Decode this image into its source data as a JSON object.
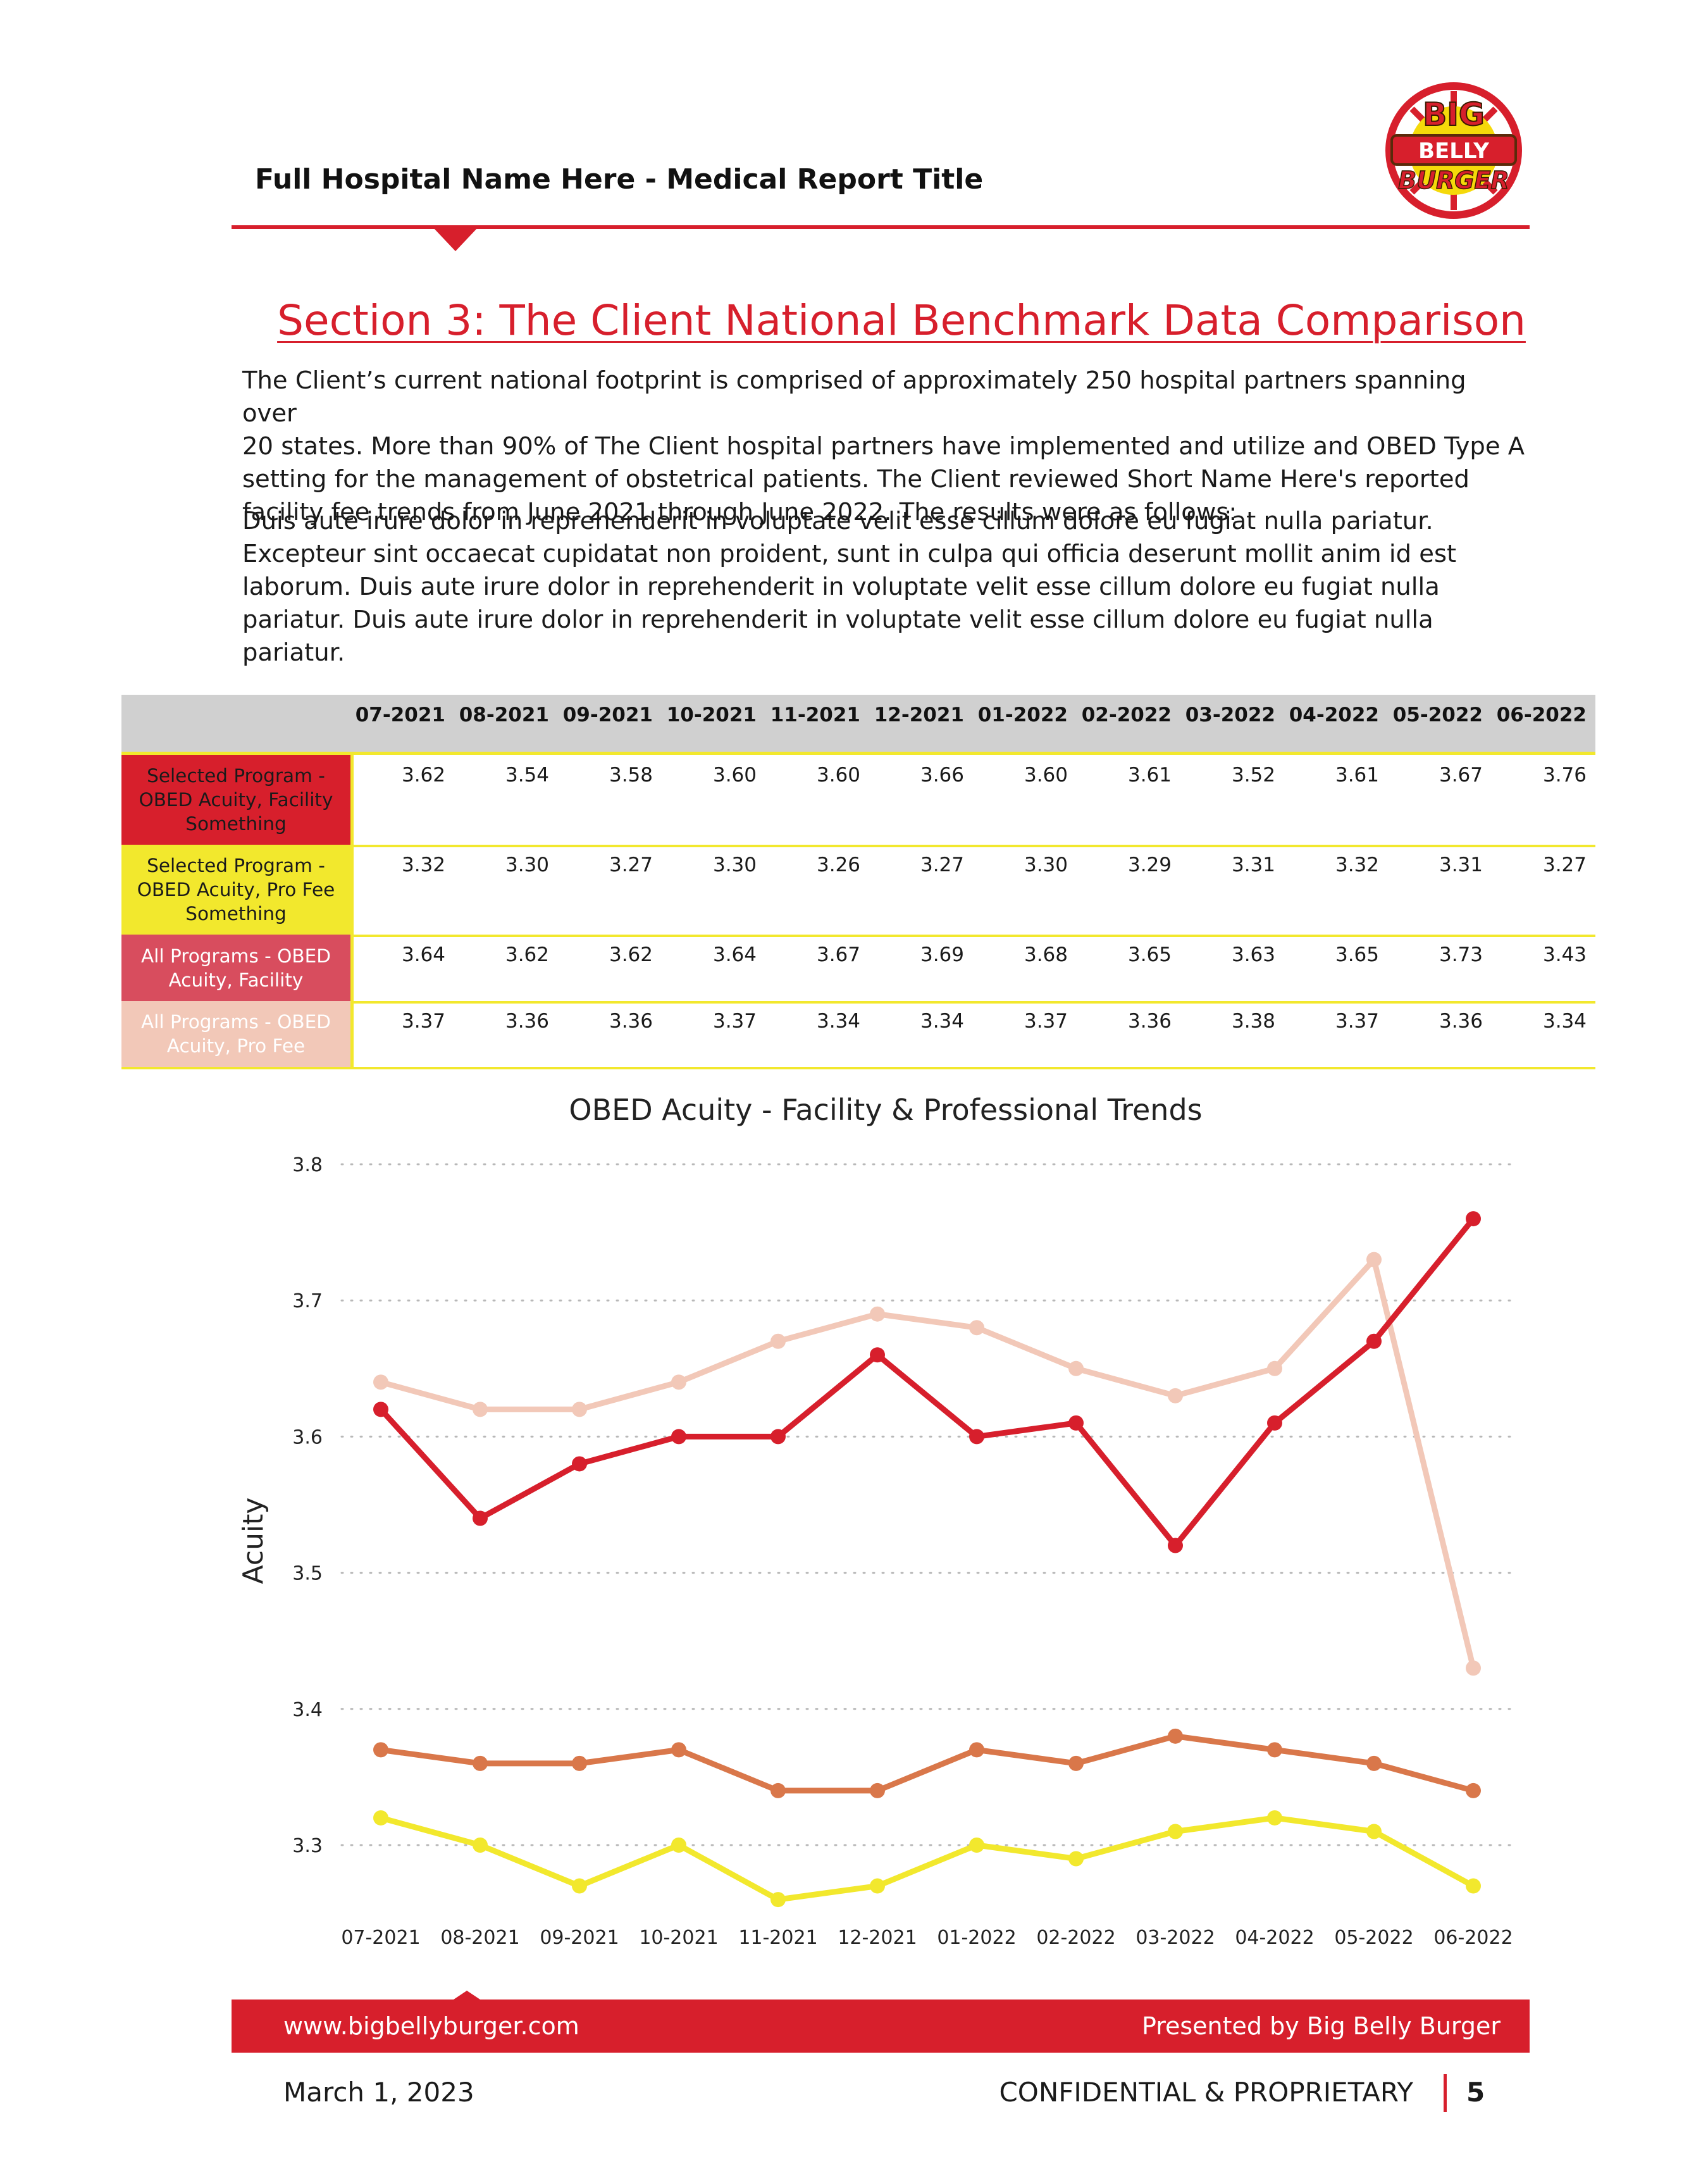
{
  "header": {
    "title": "Full Hospital Name Here - Medical Report Title",
    "logo_lines": [
      "BIG",
      "BELLY",
      "BURGER"
    ]
  },
  "section": {
    "title": "Section 3: The Client National Benchmark Data Comparison",
    "paragraph_1": "The Client’s current national footprint is comprised of approximately 250 hospital partners spanning over\n20 states. More than 90% of The Client hospital partners have implemented and utilize and OBED Type A\nsetting for the management of obstetrical patients. The Client reviewed Short Name Here's reported\nfacility fee trends from June 2021 through June 2022. The results were as follows:",
    "paragraph_2": "Duis aute irure dolor in reprehenderit in voluptate velit esse cillum dolore eu fugiat nulla pariatur.\nExcepteur sint occaecat cupidatat non proident, sunt in culpa qui officia deserunt mollit anim id est\nlaborum. Duis aute irure dolor in reprehenderit in voluptate velit esse cillum dolore eu fugiat nulla\npariatur. Duis aute irure dolor in reprehenderit in voluptate velit esse cillum dolore eu fugiat nulla\npariatur."
  },
  "table": {
    "months": [
      "07-2021",
      "08-2021",
      "09-2021",
      "10-2021",
      "11-2021",
      "12-2021",
      "01-2022",
      "02-2022",
      "03-2022",
      "04-2022",
      "05-2022",
      "06-2022"
    ],
    "rows": [
      {
        "label": "Selected Program -\nOBED Acuity, Facility\nSomething",
        "bg": "#d71f2c",
        "fg": "#1a1a1a",
        "values": [
          "3.62",
          "3.54",
          "3.58",
          "3.60",
          "3.60",
          "3.66",
          "3.60",
          "3.61",
          "3.52",
          "3.61",
          "3.67",
          "3.76"
        ]
      },
      {
        "label": "Selected Program -\nOBED Acuity, Pro Fee\nSomething",
        "bg": "#f2e82d",
        "fg": "#1a1a1a",
        "values": [
          "3.32",
          "3.30",
          "3.27",
          "3.30",
          "3.26",
          "3.27",
          "3.30",
          "3.29",
          "3.31",
          "3.32",
          "3.31",
          "3.27"
        ]
      },
      {
        "label": "All Programs - OBED\nAcuity, Facility",
        "bg": "#d84d5e",
        "fg": "#ffffff",
        "values": [
          "3.64",
          "3.62",
          "3.62",
          "3.64",
          "3.67",
          "3.69",
          "3.68",
          "3.65",
          "3.63",
          "3.65",
          "3.73",
          "3.43"
        ]
      },
      {
        "label": "All Programs - OBED\nAcuity, Pro Fee",
        "bg": "#f2c8b8",
        "fg": "#ffffff",
        "values": [
          "3.37",
          "3.36",
          "3.36",
          "3.37",
          "3.34",
          "3.34",
          "3.37",
          "3.36",
          "3.38",
          "3.37",
          "3.36",
          "3.34"
        ]
      }
    ]
  },
  "chart_data": {
    "type": "line",
    "title": "OBED Acuity - Facility & Professional Trends",
    "ylabel": "Acuity",
    "xlabel": "",
    "categories": [
      "07-2021",
      "08-2021",
      "09-2021",
      "10-2021",
      "11-2021",
      "12-2021",
      "01-2022",
      "02-2022",
      "03-2022",
      "04-2022",
      "05-2022",
      "06-2022"
    ],
    "ylim": [
      3.25,
      3.8
    ],
    "yticks": [
      "3.3",
      "3.4",
      "3.5",
      "3.6",
      "3.7",
      "3.8"
    ],
    "grid": true,
    "legend": "none",
    "series": [
      {
        "color": "#f2c8b8",
        "values": [
          3.64,
          3.62,
          3.62,
          3.64,
          3.67,
          3.69,
          3.68,
          3.65,
          3.63,
          3.65,
          3.73,
          3.43
        ]
      },
      {
        "color": "#d71f2c",
        "values": [
          3.62,
          3.54,
          3.58,
          3.6,
          3.6,
          3.66,
          3.6,
          3.61,
          3.52,
          3.61,
          3.67,
          3.76
        ]
      },
      {
        "color": "#d9774a",
        "values": [
          3.37,
          3.36,
          3.36,
          3.37,
          3.34,
          3.34,
          3.37,
          3.36,
          3.38,
          3.37,
          3.36,
          3.34
        ]
      },
      {
        "color": "#f2e82d",
        "values": [
          3.32,
          3.3,
          3.27,
          3.3,
          3.26,
          3.27,
          3.3,
          3.29,
          3.31,
          3.32,
          3.31,
          3.27
        ]
      }
    ]
  },
  "footer": {
    "url": "www.bigbellyburger.com",
    "presented_by": "Presented by Big Belly Burger",
    "date": "March 1, 2023",
    "confidential": "CONFIDENTIAL & PROPRIETARY",
    "page_number": "5"
  },
  "colors": {
    "brand_red": "#d71f2c",
    "accent_yellow": "#f2e82d",
    "header_gray": "#d0d0d0"
  }
}
